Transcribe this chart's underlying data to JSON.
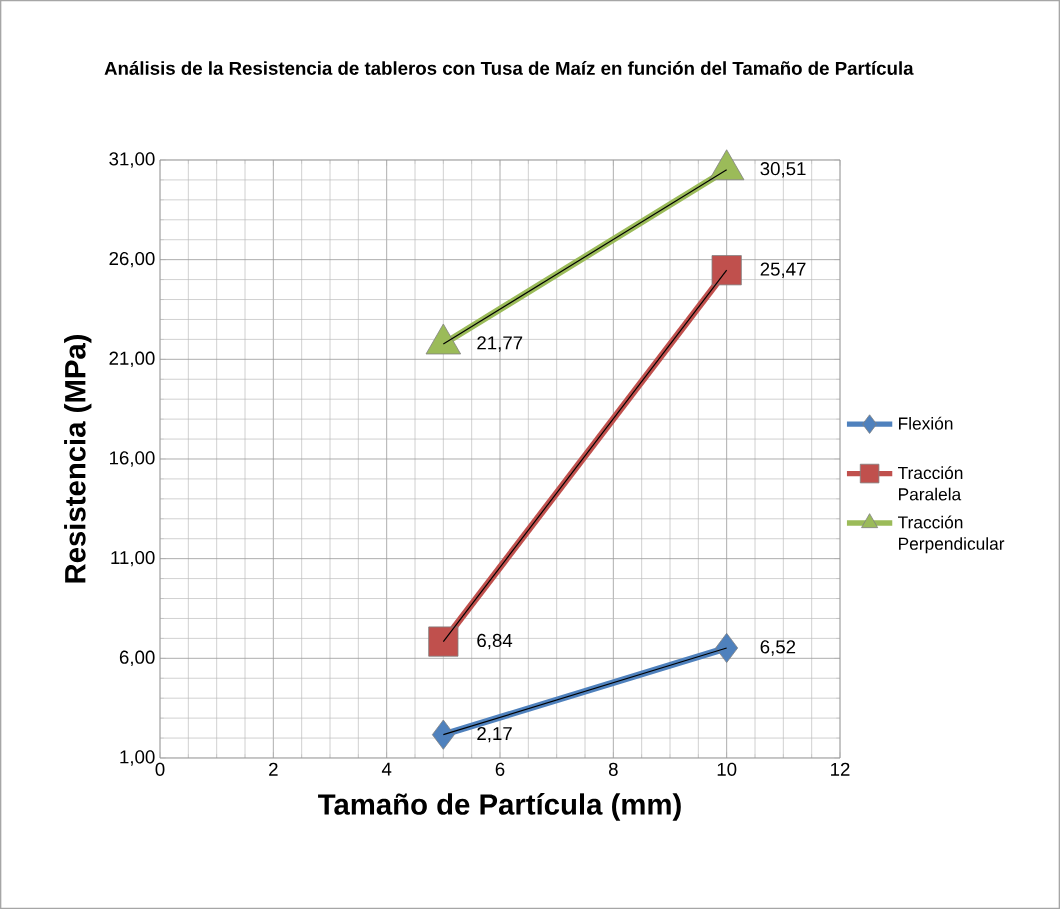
{
  "chart_data": {
    "type": "line",
    "title": "Análisis de la Resistencia de tableros con Tusa de Maíz en función del Tamaño de Partícula",
    "xlabel": "Tamaño de Partícula (mm)",
    "ylabel": "Resistencia (MPa)",
    "x": [
      5,
      10
    ],
    "series": [
      {
        "name": "Flexión",
        "color": "#4f81bd",
        "marker": "diamond",
        "values": [
          2.17,
          6.52
        ],
        "value_labels": [
          "2,17",
          "6,52"
        ]
      },
      {
        "name": "Tracción Paralela",
        "color": "#c0504d",
        "marker": "square",
        "values": [
          6.84,
          25.47
        ],
        "value_labels": [
          "6,84",
          "25,47"
        ]
      },
      {
        "name": "Tracción Perpendicular",
        "color": "#9bbb59",
        "marker": "triangle",
        "values": [
          21.77,
          30.51
        ],
        "value_labels": [
          "21,77",
          "30,51"
        ]
      },
      {
        "color": "#000000",
        "marker": "none",
        "values": [
          2.17,
          6.52
        ]
      },
      {
        "color": "#000000",
        "marker": "none",
        "values": [
          6.84,
          25.47
        ]
      },
      {
        "color": "#000000",
        "marker": "none",
        "values": [
          21.77,
          30.51
        ]
      }
    ],
    "xlim": [
      0,
      12
    ],
    "xticks": [
      0,
      2,
      4,
      6,
      8,
      10,
      12
    ],
    "ylim": [
      1,
      31
    ],
    "yticks": [
      {
        "value": 1,
        "label": "1,00"
      },
      {
        "value": 6,
        "label": "6,00"
      },
      {
        "value": 11,
        "label": "11,00"
      },
      {
        "value": 16,
        "label": "16,00"
      },
      {
        "value": 21,
        "label": "21,00"
      },
      {
        "value": 26,
        "label": "26,00"
      },
      {
        "value": 31,
        "label": "31,00"
      }
    ],
    "grid": true,
    "legend": "right"
  }
}
